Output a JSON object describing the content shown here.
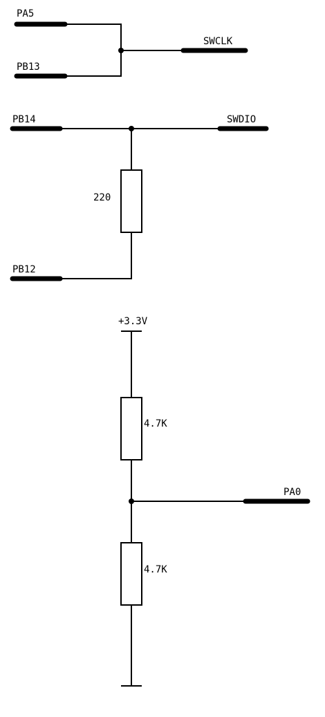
{
  "nets": {
    "pa5": "PA5",
    "pb13": "PB13",
    "swclk": "SWCLK",
    "pb14": "PB14",
    "swdio": "SWDIO",
    "pb12": "PB12",
    "pa0": "PA0",
    "vcc": "+3.3V"
  },
  "components": {
    "r_swdio": "220",
    "r_pullup": "4.7K",
    "r_pulldown": "4.7K"
  },
  "colors": {
    "ink": "#000000",
    "background": "#ffffff"
  }
}
